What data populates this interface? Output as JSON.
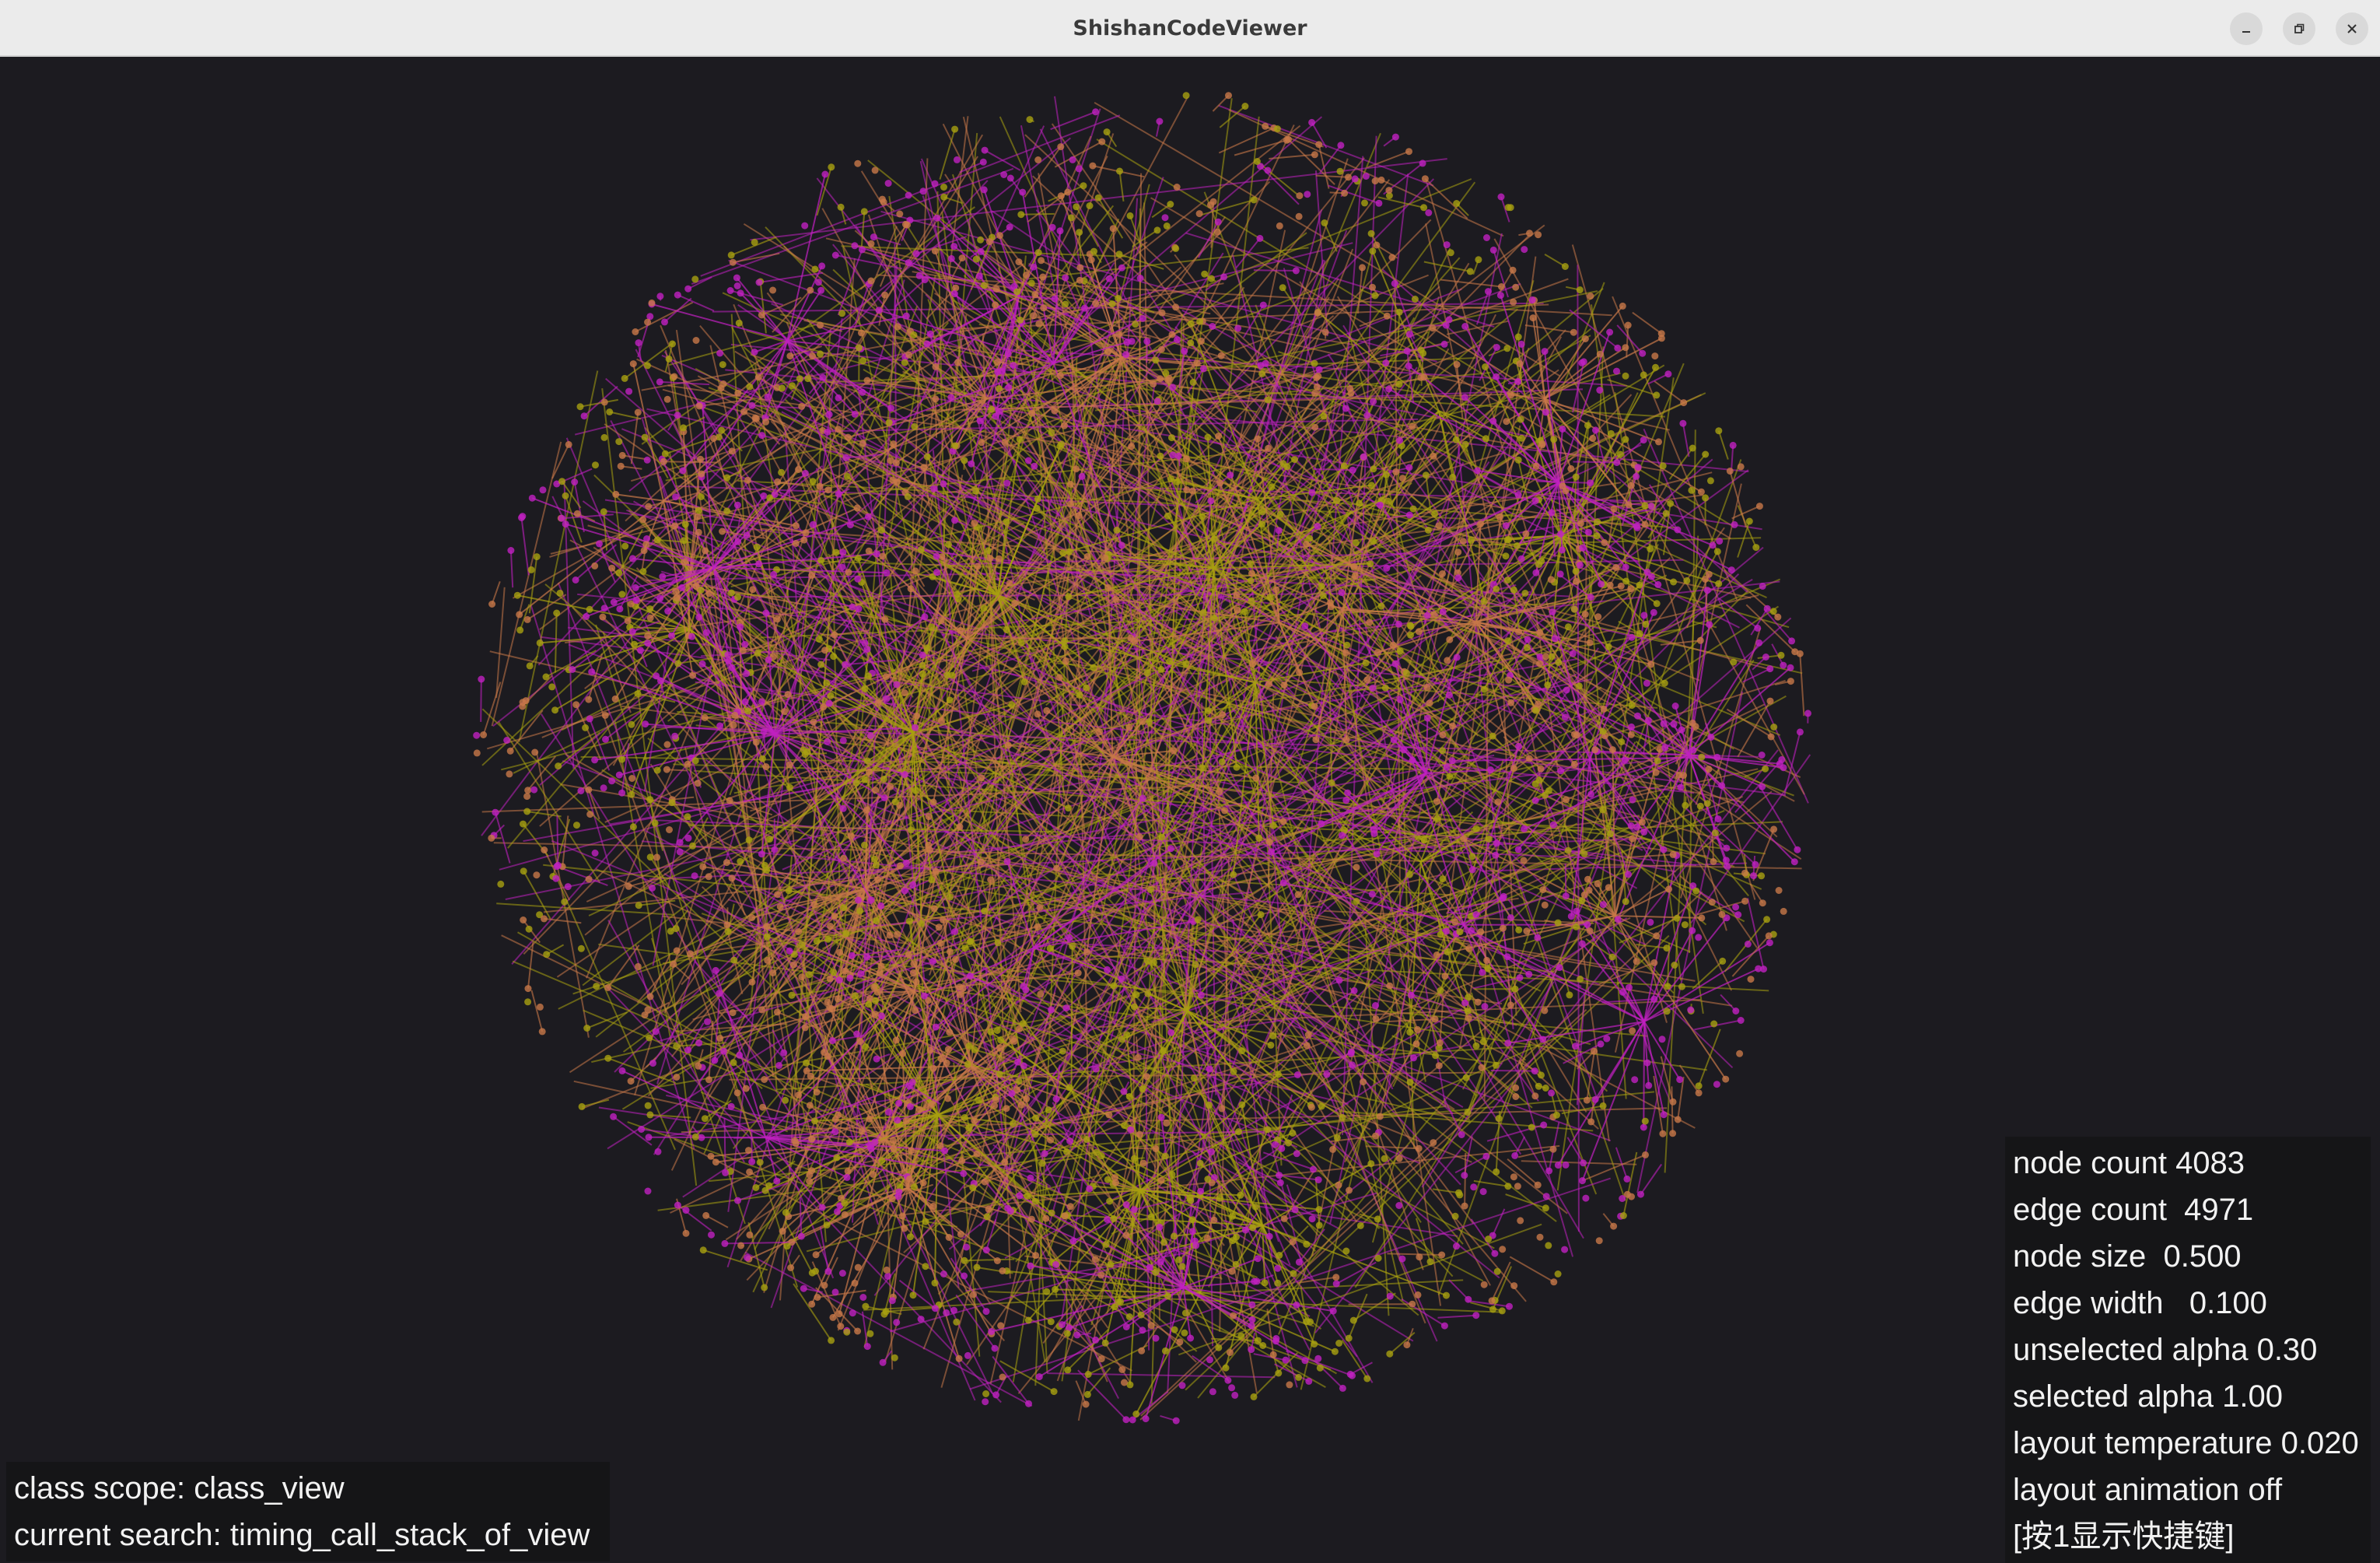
{
  "window": {
    "title": "ShishanCodeViewer",
    "controls": [
      "minimize-icon",
      "restore-icon",
      "close-icon"
    ]
  },
  "graph": {
    "colors": {
      "background": "#1c1b20",
      "magenta": "#c020c0",
      "yellow": "#a8a010",
      "orange": "#c87848"
    }
  },
  "stats": {
    "node_count": "node count 4083",
    "edge_count": "edge count  4971",
    "node_size": "node size  0.500",
    "edge_width": "edge width   0.100",
    "unselected_alpha": "unselected alpha 0.30",
    "selected_alpha": "selected alpha 1.00",
    "layout_temperature": "layout temperature 0.020",
    "layout_animation": "layout animation off",
    "shortcut_hint": "[按1显示快捷键]"
  },
  "search": {
    "class_scope": "class scope: class_view",
    "current_search": "current search: timing_call_stack_of_view"
  }
}
